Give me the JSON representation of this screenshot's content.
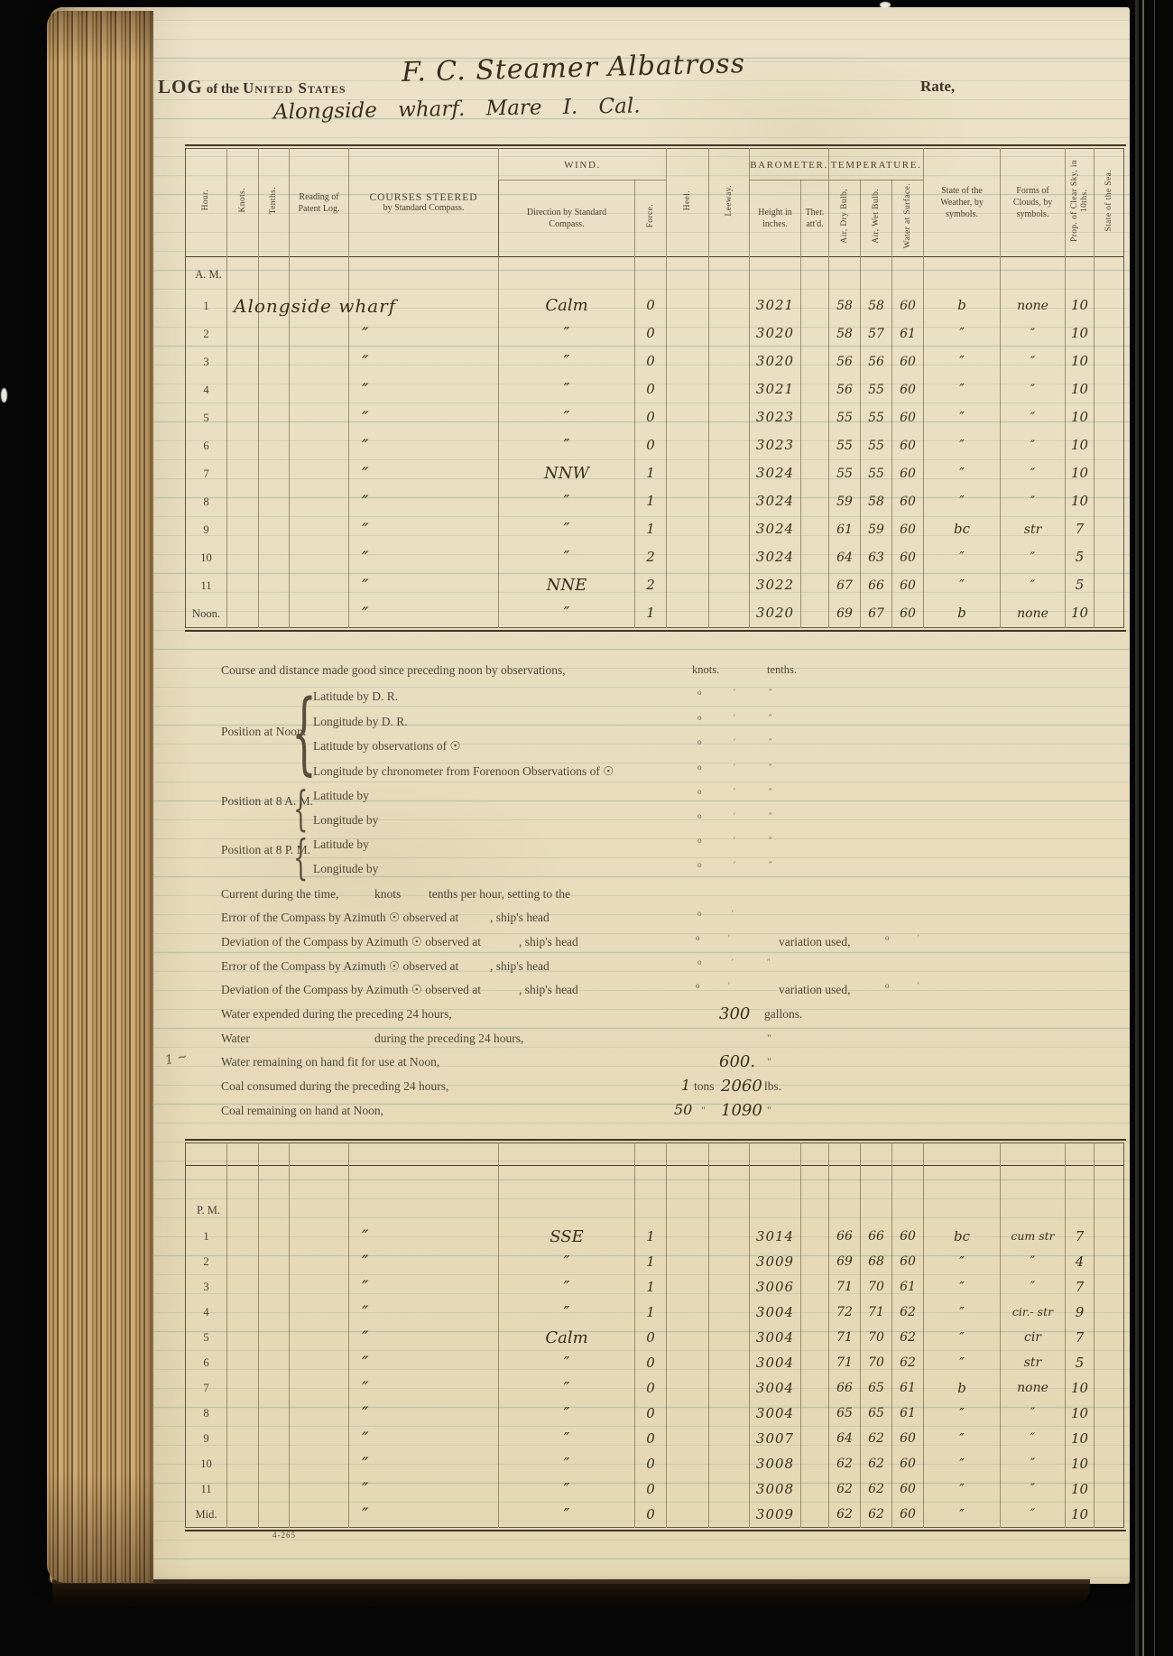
{
  "header": {
    "title_a": "LOG",
    "title_b": "of the",
    "title_c": "United States",
    "vessel": "F. C. Steamer  Albatross",
    "rate": "Rate,",
    "location": "Alongside wharf.  Mare I. Cal."
  },
  "table_header": {
    "hour": "Hour.",
    "knots": "Knots.",
    "tenths": "Tenths.",
    "patent": "Reading of Patent Log.",
    "courses_1": "COURSES STEERED",
    "courses_2": "by Standard Compass.",
    "wind": "WIND.",
    "wind_dir_1": "Direction by Standard",
    "wind_dir_2": "Compass.",
    "force": "Force.",
    "heel": "Heel.",
    "leeway": "Leeway.",
    "barometer": "BAROMETER.",
    "bar_height": "Height in inches.",
    "ther": "Ther. att'd.",
    "temperature": "TEMPERATURE.",
    "dry": "Air, Dry Bulb,",
    "wet": "Air, Wet Bulb.",
    "water": "Water at Surface.",
    "weather": "State of the Weather, by symbols.",
    "clouds": "Forms of Clouds, by symbols.",
    "sky": "Prop. of Clear Sky, in 10ths.",
    "sea": "State of the Sea."
  },
  "periods": {
    "am": "A. M.",
    "pm": "P. M."
  },
  "am_rows": [
    {
      "hour": "1",
      "course": "Alongside wharf",
      "wind": "Calm",
      "force": "0",
      "bar": "3021",
      "dry": "58",
      "wet": "58",
      "water": "60",
      "weather": "b",
      "clouds": "none",
      "sky": "10"
    },
    {
      "hour": "2",
      "course": "″",
      "wind": "″",
      "force": "0",
      "bar": "3020",
      "dry": "58",
      "wet": "57",
      "water": "61",
      "weather": "″",
      "clouds": "″",
      "sky": "10"
    },
    {
      "hour": "3",
      "course": "″",
      "wind": "″",
      "force": "0",
      "bar": "3020",
      "dry": "56",
      "wet": "56",
      "water": "60",
      "weather": "″",
      "clouds": "″",
      "sky": "10"
    },
    {
      "hour": "4",
      "course": "″",
      "wind": "″",
      "force": "0",
      "bar": "3021",
      "dry": "56",
      "wet": "55",
      "water": "60",
      "weather": "″",
      "clouds": "″",
      "sky": "10"
    },
    {
      "hour": "5",
      "course": "″",
      "wind": "″",
      "force": "0",
      "bar": "3023",
      "dry": "55",
      "wet": "55",
      "water": "60",
      "weather": "″",
      "clouds": "″",
      "sky": "10"
    },
    {
      "hour": "6",
      "course": "″",
      "wind": "″",
      "force": "0",
      "bar": "3023",
      "dry": "55",
      "wet": "55",
      "water": "60",
      "weather": "″",
      "clouds": "″",
      "sky": "10"
    },
    {
      "hour": "7",
      "course": "″",
      "wind": "NNW",
      "force": "1",
      "bar": "3024",
      "dry": "55",
      "wet": "55",
      "water": "60",
      "weather": "″",
      "clouds": "″",
      "sky": "10"
    },
    {
      "hour": "8",
      "course": "″",
      "wind": "″",
      "force": "1",
      "bar": "3024",
      "dry": "59",
      "wet": "58",
      "water": "60",
      "weather": "″",
      "clouds": "″",
      "sky": "10"
    },
    {
      "hour": "9",
      "course": "″",
      "wind": "″",
      "force": "1",
      "bar": "3024",
      "dry": "61",
      "wet": "59",
      "water": "60",
      "weather": "bc",
      "clouds": "str",
      "sky": "7"
    },
    {
      "hour": "10",
      "course": "″",
      "wind": "″",
      "force": "2",
      "bar": "3024",
      "dry": "64",
      "wet": "63",
      "water": "60",
      "weather": "″",
      "clouds": "″",
      "sky": "5"
    },
    {
      "hour": "11",
      "course": "″",
      "wind": "NNE",
      "force": "2",
      "bar": "3022",
      "dry": "67",
      "wet": "66",
      "water": "60",
      "weather": "″",
      "clouds": "″",
      "sky": "5"
    },
    {
      "hour": "Noon.",
      "course": "″",
      "wind": "″",
      "force": "1",
      "bar": "3020",
      "dry": "69",
      "wet": "67",
      "water": "60",
      "weather": "b",
      "clouds": "none",
      "sky": "10"
    }
  ],
  "pm_rows": [
    {
      "hour": "1",
      "course": "″",
      "wind": "SSE",
      "force": "1",
      "bar": "3014",
      "dry": "66",
      "wet": "66",
      "water": "60",
      "weather": "bc",
      "clouds": "cum str",
      "sky": "7"
    },
    {
      "hour": "2",
      "course": "″",
      "wind": "″",
      "force": "1",
      "bar": "3009",
      "dry": "69",
      "wet": "68",
      "water": "60",
      "weather": "″",
      "clouds": "″",
      "sky": "4"
    },
    {
      "hour": "3",
      "course": "″",
      "wind": "″",
      "force": "1",
      "bar": "3006",
      "dry": "71",
      "wet": "70",
      "water": "61",
      "weather": "″",
      "clouds": "″",
      "sky": "7"
    },
    {
      "hour": "4",
      "course": "″",
      "wind": "″",
      "force": "1",
      "bar": "3004",
      "dry": "72",
      "wet": "71",
      "water": "62",
      "weather": "″",
      "clouds": "cir.- str",
      "sky": "9"
    },
    {
      "hour": "5",
      "course": "″",
      "wind": "Calm",
      "force": "0",
      "bar": "3004",
      "dry": "71",
      "wet": "70",
      "water": "62",
      "weather": "″",
      "clouds": "cir",
      "sky": "7"
    },
    {
      "hour": "6",
      "course": "″",
      "wind": "″",
      "force": "0",
      "bar": "3004",
      "dry": "71",
      "wet": "70",
      "water": "62",
      "weather": "″",
      "clouds": "str",
      "sky": "5"
    },
    {
      "hour": "7",
      "course": "″",
      "wind": "″",
      "force": "0",
      "bar": "3004",
      "dry": "66",
      "wet": "65",
      "water": "61",
      "weather": "b",
      "clouds": "none",
      "sky": "10"
    },
    {
      "hour": "8",
      "course": "″",
      "wind": "″",
      "force": "0",
      "bar": "3004",
      "dry": "65",
      "wet": "65",
      "water": "61",
      "weather": "″",
      "clouds": "″",
      "sky": "10"
    },
    {
      "hour": "9",
      "course": "″",
      "wind": "″",
      "force": "0",
      "bar": "3007",
      "dry": "64",
      "wet": "62",
      "water": "60",
      "weather": "″",
      "clouds": "″",
      "sky": "10"
    },
    {
      "hour": "10",
      "course": "″",
      "wind": "″",
      "force": "0",
      "bar": "3008",
      "dry": "62",
      "wet": "62",
      "water": "60",
      "weather": "″",
      "clouds": "″",
      "sky": "10"
    },
    {
      "hour": "11",
      "course": "″",
      "wind": "″",
      "force": "0",
      "bar": "3008",
      "dry": "62",
      "wet": "62",
      "water": "60",
      "weather": "″",
      "clouds": "″",
      "sky": "10"
    },
    {
      "hour": "Mid.",
      "course": "″",
      "wind": "″",
      "force": "0",
      "bar": "3009",
      "dry": "62",
      "wet": "62",
      "water": "60",
      "weather": "″",
      "clouds": "″",
      "sky": "10"
    }
  ],
  "summary": {
    "course_line": "Course and distance made good since preceding noon by observations,",
    "knots_label": "knots.",
    "tenths_label": "tenths.",
    "position_noon_label": "Position at Noon:",
    "noon_items": [
      "Latitude by D. R.",
      "Longitude by D. R.",
      "Latitude by observations of ☉",
      "Longitude by chronometer from Forenoon Observations of ☉"
    ],
    "position_8am_label": "Position at 8 A. M.",
    "am8_items": [
      "Latitude by",
      "Longitude by"
    ],
    "position_8pm_label": "Position at 8 P. M.",
    "pm8_items": [
      "Latitude by",
      "Longitude by"
    ],
    "current_line": "Current during the time,",
    "current_knots": "knots",
    "current_tenths": "tenths per hour, setting to the",
    "error_line": "Error of the Compass by Azimuth ☉ observed at",
    "deviation_line": "Deviation of the Compass by Azimuth ☉ observed at",
    "ships_head": ", ship's head",
    "variation_used": "variation used,",
    "water_expended": "Water expended during the preceding 24 hours,",
    "water_expended_value": "300",
    "gallons": "gallons.",
    "water_blank_a": "Water",
    "water_blank_b": "during the preceding 24 hours,",
    "water_remaining": "Water remaining on hand fit for use at Noon,",
    "water_remaining_value": "600.",
    "coal_consumed": "Coal consumed during the preceding 24 hours,",
    "coal_consumed_tons": "1",
    "tons": "tons",
    "coal_consumed_lbs": "2060",
    "lbs": "lbs.",
    "coal_remaining": "Coal remaining on hand at Noon,",
    "coal_remaining_tons": "50",
    "coal_remaining_lbs": "1090",
    "deg": "o",
    "min": "′",
    "sec": "″",
    "quote": "\"",
    "brace": "{",
    "margin_scribble": "1 ~"
  },
  "footer": {
    "form_number": "4-265"
  }
}
